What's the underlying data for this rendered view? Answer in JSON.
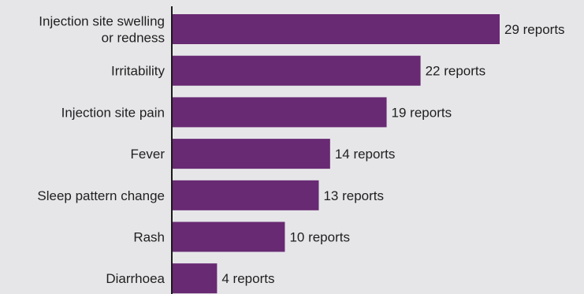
{
  "chart_data": {
    "type": "bar",
    "orientation": "horizontal",
    "categories": [
      [
        "Injection site swelling",
        "or redness"
      ],
      [
        "Irritability"
      ],
      [
        "Injection site pain"
      ],
      [
        "Fever"
      ],
      [
        "Sleep pattern change"
      ],
      [
        "Rash"
      ],
      [
        "Diarrhoea"
      ]
    ],
    "values": [
      29,
      22,
      19,
      14,
      13,
      10,
      4
    ],
    "value_labels": [
      "29 reports",
      "22 reports",
      "19 reports",
      "14 reports",
      "13 reports",
      "10 reports",
      "4 reports"
    ],
    "title": "",
    "xlabel": "",
    "ylabel": "",
    "xlim": [
      0,
      29
    ],
    "grid": false,
    "bar_color": "#682a72",
    "background_color": "#e6e6e9",
    "axis_color": "#1a1a1a"
  }
}
